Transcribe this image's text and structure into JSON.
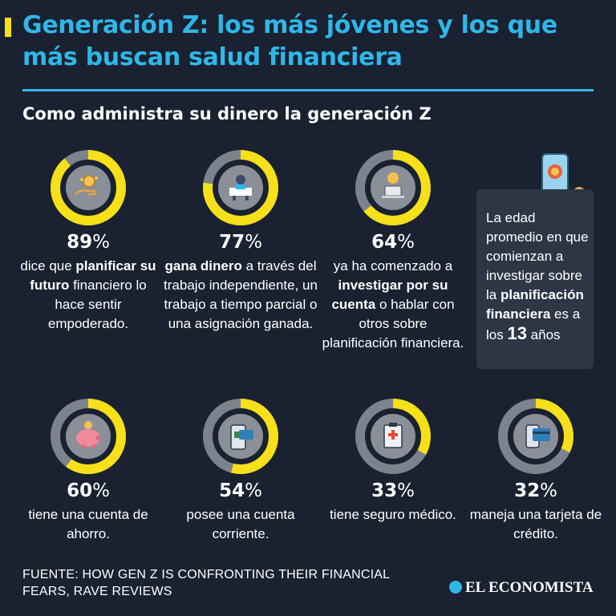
{
  "header": {
    "title": "Generación Z: los más jóvenes y los que más buscan salud financiera",
    "subtitle": "Como administra su dinero la generación Z"
  },
  "colors": {
    "accent": "#2fb7e8",
    "fill": "#f5e01a",
    "track": "#7d838c",
    "background": "#1a2130"
  },
  "chart_data": {
    "type": "donut",
    "items": [
      {
        "value": 89,
        "label": "89",
        "icon": "hand-coins-icon",
        "desc": [
          {
            "t": "dice que "
          },
          {
            "t": "planificar su futuro",
            "b": true
          },
          {
            "t": " financiero lo hace sentir empoderado."
          }
        ]
      },
      {
        "value": 77,
        "label": "77",
        "icon": "freelancer-desk-icon",
        "desc": [
          {
            "t": "gana dinero",
            "b": true
          },
          {
            "t": " a través del trabajo independiente, un trabajo a tiempo parcial o una asignación ganada."
          }
        ]
      },
      {
        "value": 64,
        "label": "64",
        "icon": "laptop-user-icon",
        "desc": [
          {
            "t": "ya ha comenzado a "
          },
          {
            "t": "investigar por su cuenta",
            "b": true
          },
          {
            "t": " o hablar con otros sobre planificación financiera."
          }
        ]
      },
      {
        "value": 60,
        "label": "60",
        "icon": "piggy-bank-icon",
        "desc": [
          {
            "t": "tiene una cuenta de ahorro."
          }
        ]
      },
      {
        "value": 54,
        "label": "54",
        "icon": "mobile-banking-icon",
        "desc": [
          {
            "t": "posee una cuenta corriente."
          }
        ]
      },
      {
        "value": 33,
        "label": "33",
        "icon": "medical-clipboard-icon",
        "desc": [
          {
            "t": "tiene seguro médico."
          }
        ]
      },
      {
        "value": 32,
        "label": "32",
        "icon": "credit-card-icon",
        "desc": [
          {
            "t": "maneja una tarjeta de crédito."
          }
        ]
      }
    ]
  },
  "callout": {
    "pre": "La edad promedio en que comienzan a investigar sobre la ",
    "bold": "planificación financiera",
    "mid": " es a los ",
    "age": "13",
    "post": " años"
  },
  "footer": {
    "source": "FUENTE: HOW GEN Z IS CONFRONTING THEIR FINANCIAL FEARS, RAVE REVIEWS",
    "brand": "EL ECONOMISTA"
  }
}
